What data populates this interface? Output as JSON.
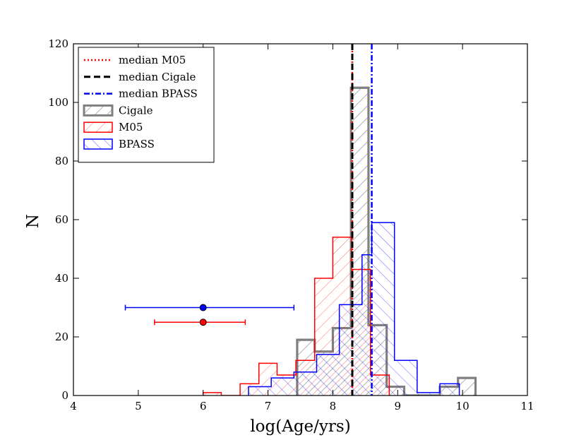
{
  "chart_data": {
    "type": "histogram",
    "xlabel": "log(Age/yrs)",
    "ylabel": "N",
    "xlim": [
      4,
      11
    ],
    "ylim": [
      0,
      120
    ],
    "xticks": [
      4,
      5,
      6,
      7,
      8,
      9,
      10,
      11
    ],
    "yticks": [
      0,
      20,
      40,
      60,
      80,
      100,
      120
    ],
    "legend_position": "upper-left",
    "colors": {
      "m05": "#ff0000",
      "cigale": "#000000",
      "cigale_hist": "#808080",
      "bpass": "#0000ff"
    },
    "medians": [
      {
        "name": "median M05",
        "x": 8.3,
        "style": "dotted",
        "color": "#ff0000"
      },
      {
        "name": "median Cigale",
        "x": 8.3,
        "style": "dashed",
        "color": "#000000"
      },
      {
        "name": "median BPASS",
        "x": 8.6,
        "style": "dashdot",
        "color": "#0000ff"
      }
    ],
    "histograms": [
      {
        "name": "Cigale",
        "color": "#808080",
        "hatch": "/",
        "bins": [
          {
            "x0": 7.45,
            "x1": 7.72,
            "count": 19
          },
          {
            "x0": 7.72,
            "x1": 8.0,
            "count": 15
          },
          {
            "x0": 8.0,
            "x1": 8.28,
            "count": 23
          },
          {
            "x0": 8.28,
            "x1": 8.55,
            "count": 105
          },
          {
            "x0": 8.55,
            "x1": 8.83,
            "count": 24
          },
          {
            "x0": 8.83,
            "x1": 9.1,
            "count": 3
          },
          {
            "x0": 9.1,
            "x1": 9.38,
            "count": 0
          },
          {
            "x0": 9.38,
            "x1": 9.65,
            "count": 0
          },
          {
            "x0": 9.65,
            "x1": 9.93,
            "count": 3
          },
          {
            "x0": 9.93,
            "x1": 10.2,
            "count": 6
          }
        ]
      },
      {
        "name": "M05",
        "color": "#ff0000",
        "hatch": "/",
        "bins": [
          {
            "x0": 6.0,
            "x1": 6.28,
            "count": 1
          },
          {
            "x0": 6.28,
            "x1": 6.57,
            "count": 0
          },
          {
            "x0": 6.57,
            "x1": 6.86,
            "count": 4
          },
          {
            "x0": 6.86,
            "x1": 7.14,
            "count": 11
          },
          {
            "x0": 7.14,
            "x1": 7.43,
            "count": 7
          },
          {
            "x0": 7.43,
            "x1": 7.72,
            "count": 12
          },
          {
            "x0": 7.72,
            "x1": 8.0,
            "count": 40
          },
          {
            "x0": 8.0,
            "x1": 8.29,
            "count": 54
          },
          {
            "x0": 8.29,
            "x1": 8.58,
            "count": 43
          },
          {
            "x0": 8.58,
            "x1": 8.87,
            "count": 7
          }
        ]
      },
      {
        "name": "BPASS",
        "color": "#0000ff",
        "hatch": "\\",
        "bins": [
          {
            "x0": 6.7,
            "x1": 7.05,
            "count": 3
          },
          {
            "x0": 7.05,
            "x1": 7.4,
            "count": 6
          },
          {
            "x0": 7.4,
            "x1": 7.75,
            "count": 8
          },
          {
            "x0": 7.75,
            "x1": 8.1,
            "count": 14
          },
          {
            "x0": 8.1,
            "x1": 8.45,
            "count": 31
          },
          {
            "x0": 8.45,
            "x1": 8.6,
            "count": 48
          },
          {
            "x0": 8.6,
            "x1": 8.95,
            "count": 59
          },
          {
            "x0": 8.95,
            "x1": 9.3,
            "count": 12
          },
          {
            "x0": 9.3,
            "x1": 9.65,
            "count": 1
          },
          {
            "x0": 9.65,
            "x1": 9.95,
            "count": 4
          }
        ]
      }
    ],
    "error_points": [
      {
        "name": "BPASS typical error",
        "x": 6.0,
        "y": 30,
        "xerr_low": 4.8,
        "xerr_high": 7.4,
        "color": "#0000ff"
      },
      {
        "name": "M05 typical error",
        "x": 6.0,
        "y": 25,
        "xerr_low": 5.25,
        "xerr_high": 6.65,
        "color": "#ff0000"
      }
    ],
    "legend": [
      {
        "label": "median M05",
        "kind": "line",
        "style": "dotted",
        "color": "#ff0000"
      },
      {
        "label": "median Cigale",
        "kind": "line",
        "style": "dashed",
        "color": "#000000"
      },
      {
        "label": "median BPASS",
        "kind": "line",
        "style": "dashdot",
        "color": "#0000ff"
      },
      {
        "label": "Cigale",
        "kind": "patch",
        "color": "#808080",
        "hatch": "/"
      },
      {
        "label": "M05",
        "kind": "patch",
        "color": "#ff0000",
        "hatch": "/"
      },
      {
        "label": "BPASS",
        "kind": "patch",
        "color": "#0000ff",
        "hatch": "\\"
      }
    ]
  }
}
